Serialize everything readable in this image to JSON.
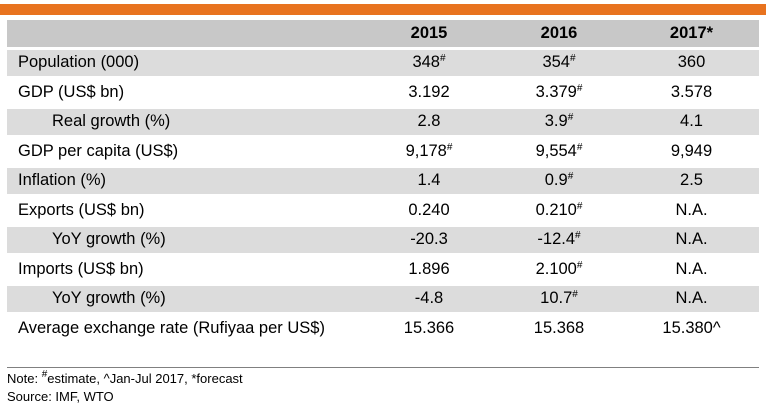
{
  "colors": {
    "accent_bar": "#e8731f",
    "header_bg": "#c8c8c8",
    "shaded_row_bg": "#dcdcdc"
  },
  "table": {
    "columns": [
      "2015",
      "2016",
      "2017*"
    ],
    "rows": [
      {
        "label": "Population (000)",
        "indent": false,
        "shaded": true,
        "cells": [
          {
            "v": "348",
            "sup": "#"
          },
          {
            "v": "354",
            "sup": "#"
          },
          {
            "v": "360",
            "sup": ""
          }
        ]
      },
      {
        "label": "GDP (US$ bn)",
        "indent": false,
        "shaded": false,
        "cells": [
          {
            "v": "3.192",
            "sup": ""
          },
          {
            "v": "3.379",
            "sup": "#"
          },
          {
            "v": "3.578",
            "sup": ""
          }
        ]
      },
      {
        "label": "Real growth (%)",
        "indent": true,
        "shaded": true,
        "cells": [
          {
            "v": "2.8",
            "sup": ""
          },
          {
            "v": "3.9",
            "sup": "#"
          },
          {
            "v": "4.1",
            "sup": ""
          }
        ]
      },
      {
        "label": "GDP per capita (US$)",
        "indent": false,
        "shaded": false,
        "cells": [
          {
            "v": "9,178",
            "sup": "#"
          },
          {
            "v": "9,554",
            "sup": "#"
          },
          {
            "v": "9,949",
            "sup": ""
          }
        ]
      },
      {
        "label": "Inflation (%)",
        "indent": false,
        "shaded": true,
        "cells": [
          {
            "v": "1.4",
            "sup": ""
          },
          {
            "v": "0.9",
            "sup": "#"
          },
          {
            "v": "2.5",
            "sup": ""
          }
        ]
      },
      {
        "label": "Exports (US$ bn)",
        "indent": false,
        "shaded": false,
        "cells": [
          {
            "v": "0.240",
            "sup": ""
          },
          {
            "v": "0.210",
            "sup": "#"
          },
          {
            "v": "N.A.",
            "sup": ""
          }
        ]
      },
      {
        "label": "YoY growth (%)",
        "indent": true,
        "shaded": true,
        "cells": [
          {
            "v": "-20.3",
            "sup": ""
          },
          {
            "v": "-12.4",
            "sup": "#"
          },
          {
            "v": "N.A.",
            "sup": ""
          }
        ]
      },
      {
        "label": "Imports (US$ bn)",
        "indent": false,
        "shaded": false,
        "cells": [
          {
            "v": "1.896",
            "sup": ""
          },
          {
            "v": "2.100",
            "sup": "#"
          },
          {
            "v": "N.A.",
            "sup": ""
          }
        ]
      },
      {
        "label": "YoY growth (%)",
        "indent": true,
        "shaded": true,
        "cells": [
          {
            "v": "-4.8",
            "sup": ""
          },
          {
            "v": "10.7",
            "sup": "#"
          },
          {
            "v": "N.A.",
            "sup": ""
          }
        ]
      },
      {
        "label": "Average exchange rate (Rufiyaa per US$)",
        "indent": false,
        "shaded": false,
        "cells": [
          {
            "v": "15.366",
            "sup": ""
          },
          {
            "v": "15.368",
            "sup": ""
          },
          {
            "v": "15.380^",
            "sup": ""
          }
        ]
      }
    ]
  },
  "footer": {
    "note_prefix": "Note: ",
    "note_sup": "#",
    "note_rest": "estimate, ^Jan-Jul 2017, *forecast",
    "source": "Source: IMF, WTO"
  }
}
